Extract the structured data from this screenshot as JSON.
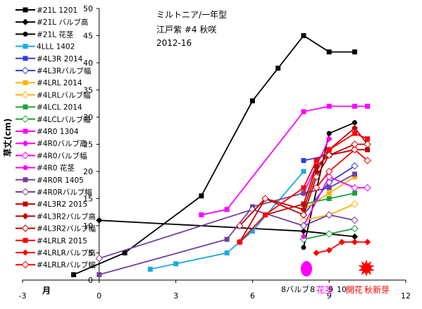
{
  "chart_data": {
    "type": "line",
    "title_lines": [
      "ミルトニア/一年型",
      "江戸紫  #4 秋咲",
      "2012-16"
    ],
    "ylabel": "草丈(cm)",
    "xlabel": "月",
    "xlim": [
      -3,
      12
    ],
    "ylim": [
      0,
      50
    ],
    "x_ticks": [
      -3,
      0,
      3,
      6,
      9,
      12
    ],
    "y_ticks": [
      0,
      5,
      10,
      15,
      20,
      25,
      30,
      35,
      40,
      45,
      50
    ],
    "grid": false,
    "legend_position": "left",
    "annotations": {
      "bulb": "8バルブ",
      "stem": "花茎",
      "stem_ticks": [
        "8",
        "9",
        "10"
      ],
      "bloom": "開花",
      "autumn_sprout": "秋新芽"
    },
    "series": [
      {
        "name": "#21L 1201",
        "color": "#000000",
        "marker": "square",
        "x": [
          -1,
          1,
          4,
          6,
          7,
          8,
          9,
          10
        ],
        "y": [
          1,
          5,
          15.5,
          33,
          39,
          45,
          42,
          42
        ]
      },
      {
        "name": "#21L バルブ高",
        "color": "#000000",
        "marker": "diamond",
        "x": [
          0,
          8,
          9,
          10
        ],
        "y": [
          11,
          9,
          8.5,
          8
        ]
      },
      {
        "name": "#21L 花茎",
        "color": "#000000",
        "marker": "circle",
        "x": [
          8,
          9,
          10
        ],
        "y": [
          6,
          27,
          29
        ]
      },
      {
        "name": "4LLL 1402",
        "color": "#1ca9e1",
        "marker": "square",
        "x": [
          2,
          3,
          5,
          6,
          8
        ],
        "y": [
          2,
          3,
          5,
          9,
          20
        ]
      },
      {
        "name": "#4L3R 2014",
        "color": "#3040d8",
        "marker": "square",
        "x": [
          8,
          9,
          10
        ],
        "y": [
          22,
          23,
          24
        ]
      },
      {
        "name": "#4L3Rバルブ幅",
        "color": "#3040d8",
        "marker": "open-diamond",
        "x": [
          8,
          9,
          10
        ],
        "y": [
          12,
          18,
          21
        ]
      },
      {
        "name": "#4LRL 2014",
        "color": "#ffb300",
        "marker": "square",
        "x": [
          8,
          9,
          10
        ],
        "y": [
          13,
          16,
          19
        ]
      },
      {
        "name": "#4LRLバルブ幅",
        "color": "#ffb300",
        "marker": "open-diamond",
        "x": [
          8,
          9,
          10
        ],
        "y": [
          11,
          12,
          14
        ]
      },
      {
        "name": "#4LCL 2014",
        "color": "#1fa13c",
        "marker": "square",
        "x": [
          8,
          9,
          10
        ],
        "y": [
          14,
          15,
          16
        ]
      },
      {
        "name": "#4LCLバルブ幅",
        "color": "#1fa13c",
        "marker": "open-diamond",
        "x": [
          8,
          9,
          10
        ],
        "y": [
          7.5,
          8.5,
          9.5
        ]
      },
      {
        "name": "#4R0 1304",
        "color": "#ff00ff",
        "marker": "square",
        "x": [
          4,
          5,
          8,
          9,
          10,
          10.5
        ],
        "y": [
          12,
          13,
          31,
          32,
          32,
          32
        ]
      },
      {
        "name": "#4R0バルブ高",
        "color": "#ff00ff",
        "marker": "diamond",
        "x": [
          8,
          9
        ],
        "y": [
          16,
          26
        ]
      },
      {
        "name": "#4R0バルブ幅",
        "color": "#ff00ff",
        "marker": "open-diamond",
        "x": [
          8,
          9,
          10,
          10.5
        ],
        "y": [
          10,
          19,
          17,
          17
        ]
      },
      {
        "name": "#4R0 花茎",
        "color": "#ff00ff",
        "marker": "circle",
        "x": [
          8
        ],
        "y": [
          8
        ]
      },
      {
        "name": "#4R0R 1405",
        "color": "#7040a0",
        "marker": "square",
        "x": [
          0,
          5,
          6,
          8,
          9,
          10
        ],
        "y": [
          1,
          7.5,
          13.5,
          16,
          17,
          19.5
        ]
      },
      {
        "name": "#4R0Rバルブ幅",
        "color": "#7040a0",
        "marker": "open-diamond",
        "x": [
          0,
          6,
          8,
          9,
          10
        ],
        "y": [
          4,
          13,
          10,
          12,
          11
        ]
      },
      {
        "name": "#4L3R2 2015",
        "color": "#c00000",
        "marker": "square",
        "x": [
          5.5,
          6.5,
          8,
          8.5,
          9,
          10,
          10.5
        ],
        "y": [
          7,
          12,
          14,
          21,
          23,
          24,
          24
        ]
      },
      {
        "name": "#4L3R2バルブ高",
        "color": "#c00000",
        "marker": "diamond",
        "x": [
          5.5,
          6.5,
          8,
          8.5,
          9,
          10,
          10.5
        ],
        "y": [
          7,
          15,
          13,
          20,
          24,
          28,
          25
        ]
      },
      {
        "name": "#4L3R2バルブ幅",
        "color": "#c00000",
        "marker": "open-diamond",
        "x": [
          5.5,
          6.5,
          8,
          8.5,
          9,
          10,
          10.5
        ],
        "y": [
          10,
          15,
          12,
          19,
          23,
          25,
          25
        ]
      },
      {
        "name": "#4LRLR 2015",
        "color": "#ff0000",
        "marker": "square",
        "x": [
          5.5,
          6.5,
          8,
          8.5,
          9,
          10,
          10.5
        ],
        "y": [
          7,
          12,
          17,
          22,
          24,
          27,
          26
        ]
      },
      {
        "name": "#4LRLRバルブ高",
        "color": "#ff0000",
        "marker": "diamond",
        "x": [
          8.5,
          9,
          9.5,
          10,
          10.5
        ],
        "y": [
          5,
          5.5,
          7,
          7,
          7
        ]
      },
      {
        "name": "#4LRLRバルブ幅",
        "color": "#ff0000",
        "marker": "open-diamond",
        "x": [
          8.5,
          9,
          10,
          10.5
        ],
        "y": [
          17,
          20,
          24,
          22
        ]
      }
    ]
  }
}
